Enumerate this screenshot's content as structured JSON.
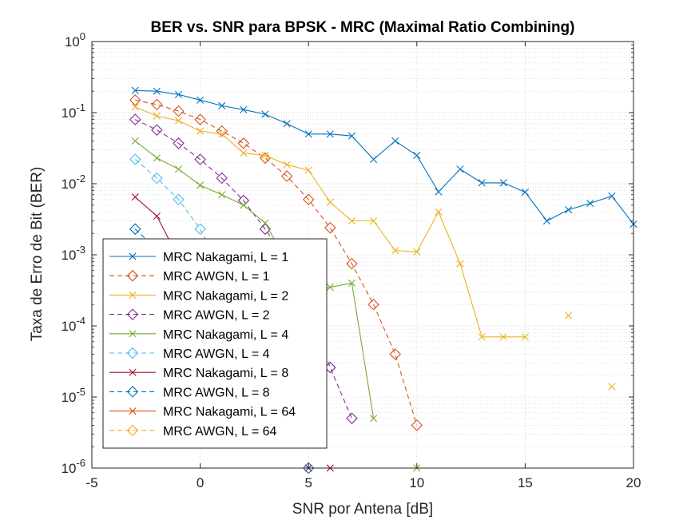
{
  "chart_data": {
    "type": "line",
    "title": "BER vs. SNR para BPSK - MRC (Maximal Ratio Combining)",
    "xlabel": "SNR por Antena [dB]",
    "ylabel": "Taxa de Erro de Bit (BER)",
    "xlim": [
      -5,
      20
    ],
    "ylim": [
      1e-06,
      1
    ],
    "yscale": "log",
    "grid": true,
    "minor_grid": true,
    "legend_position": "bottom-left",
    "x_ticks": [
      -5,
      0,
      5,
      10,
      15,
      20
    ],
    "y_ticks": [
      {
        "mant": "10",
        "exp": "-6",
        "value": 1e-06
      },
      {
        "mant": "10",
        "exp": "-5",
        "value": 1e-05
      },
      {
        "mant": "10",
        "exp": "-4",
        "value": 0.0001
      },
      {
        "mant": "10",
        "exp": "-3",
        "value": 0.001
      },
      {
        "mant": "10",
        "exp": "-2",
        "value": 0.01
      },
      {
        "mant": "10",
        "exp": "-1",
        "value": 0.1
      },
      {
        "mant": "10",
        "exp": "0",
        "value": 1
      }
    ],
    "series": [
      {
        "name": "MRC Nakagami, L = 1",
        "color": "#0072BD",
        "dash": false,
        "marker": "x",
        "x": [
          -3,
          -2,
          -1,
          0,
          1,
          2,
          3,
          4,
          5,
          6,
          7,
          8,
          9,
          10,
          11,
          12,
          13,
          14,
          15,
          16,
          17,
          18,
          19,
          20
        ],
        "y": [
          0.205,
          0.2,
          0.18,
          0.15,
          0.125,
          0.11,
          0.095,
          0.07,
          0.05,
          0.05,
          0.047,
          0.022,
          0.04,
          0.025,
          0.0077,
          0.016,
          0.0103,
          0.0103,
          0.0076,
          0.003,
          0.0043,
          0.0053,
          0.0067,
          0.0027
        ]
      },
      {
        "name": "MRC AWGN, L = 1",
        "color": "#D95319",
        "dash": true,
        "marker": "diamond",
        "x": [
          -3,
          -2,
          -1,
          0,
          1,
          2,
          3,
          4,
          5,
          6,
          7,
          8,
          9,
          10
        ],
        "y": [
          0.15,
          0.13,
          0.105,
          0.08,
          0.055,
          0.037,
          0.023,
          0.0128,
          0.006,
          0.0024,
          0.00075,
          0.0002,
          4e-05,
          4e-06
        ]
      },
      {
        "name": "MRC Nakagami, L = 2",
        "color": "#EDB120",
        "dash": false,
        "marker": "x",
        "x": [
          -3,
          -2,
          -1,
          0,
          1,
          2,
          3,
          4,
          5,
          6,
          7,
          8,
          9,
          10,
          11,
          12,
          13,
          14,
          15,
          17,
          19
        ],
        "y": [
          0.12,
          0.09,
          0.077,
          0.055,
          0.05,
          0.027,
          0.025,
          0.0185,
          0.0155,
          0.0055,
          0.003,
          0.003,
          0.00115,
          0.0011,
          0.004,
          0.00075,
          7e-05,
          7e-05,
          7e-05,
          0.00014,
          1.4e-05
        ],
        "segments": [
          [
            0,
            18
          ],
          [
            19,
            19
          ],
          [
            20,
            20
          ]
        ]
      },
      {
        "name": "MRC AWGN, L = 2",
        "color": "#7E2F8E",
        "dash": true,
        "marker": "diamond",
        "x": [
          -3,
          -2,
          -1,
          0,
          1,
          2,
          3,
          4,
          5,
          6,
          7
        ],
        "y": [
          0.08,
          0.057,
          0.037,
          0.022,
          0.012,
          0.0058,
          0.0023,
          0.0008,
          0.00018,
          2.6e-05,
          5e-06
        ]
      },
      {
        "name": "MRC Nakagami, L = 4",
        "color": "#77AC30",
        "dash": false,
        "marker": "x",
        "x": [
          -3,
          -2,
          -1,
          0,
          1,
          2,
          3,
          4,
          5,
          6,
          7,
          8,
          10
        ],
        "y": [
          0.04,
          0.023,
          0.016,
          0.0095,
          0.007,
          0.005,
          0.0028,
          0.0008,
          0.0003,
          0.00035,
          0.0004,
          5e-06,
          1e-06
        ],
        "segments": [
          [
            0,
            11
          ],
          [
            12,
            12
          ]
        ]
      },
      {
        "name": "MRC AWGN, L = 4",
        "color": "#4DBEEE",
        "dash": true,
        "marker": "diamond",
        "x": [
          -3,
          -2,
          -1,
          0,
          1
        ],
        "y": [
          0.022,
          0.012,
          0.006,
          0.0023,
          0.0006
        ]
      },
      {
        "name": "MRC Nakagami, L = 8",
        "color": "#A2142F",
        "dash": false,
        "marker": "x",
        "x": [
          -3,
          -2,
          -1,
          5,
          6
        ],
        "y": [
          0.0065,
          0.0035,
          0.0009,
          1e-06,
          1e-06
        ],
        "segments": [
          [
            0,
            2
          ],
          [
            3,
            4
          ]
        ]
      },
      {
        "name": "MRC AWGN, L = 8",
        "color": "#0072BD",
        "dash": true,
        "marker": "diamond",
        "x": [
          -3,
          -2,
          5
        ],
        "y": [
          0.0023,
          0.0012,
          1e-06
        ],
        "segments": [
          [
            0,
            1
          ],
          [
            2,
            2
          ]
        ]
      },
      {
        "name": "MRC Nakagami, L = 64",
        "color": "#D95319",
        "dash": false,
        "marker": "x",
        "x": [],
        "y": []
      },
      {
        "name": "MRC AWGN, L = 64",
        "color": "#EDB120",
        "dash": true,
        "marker": "diamond",
        "x": [],
        "y": []
      }
    ]
  }
}
